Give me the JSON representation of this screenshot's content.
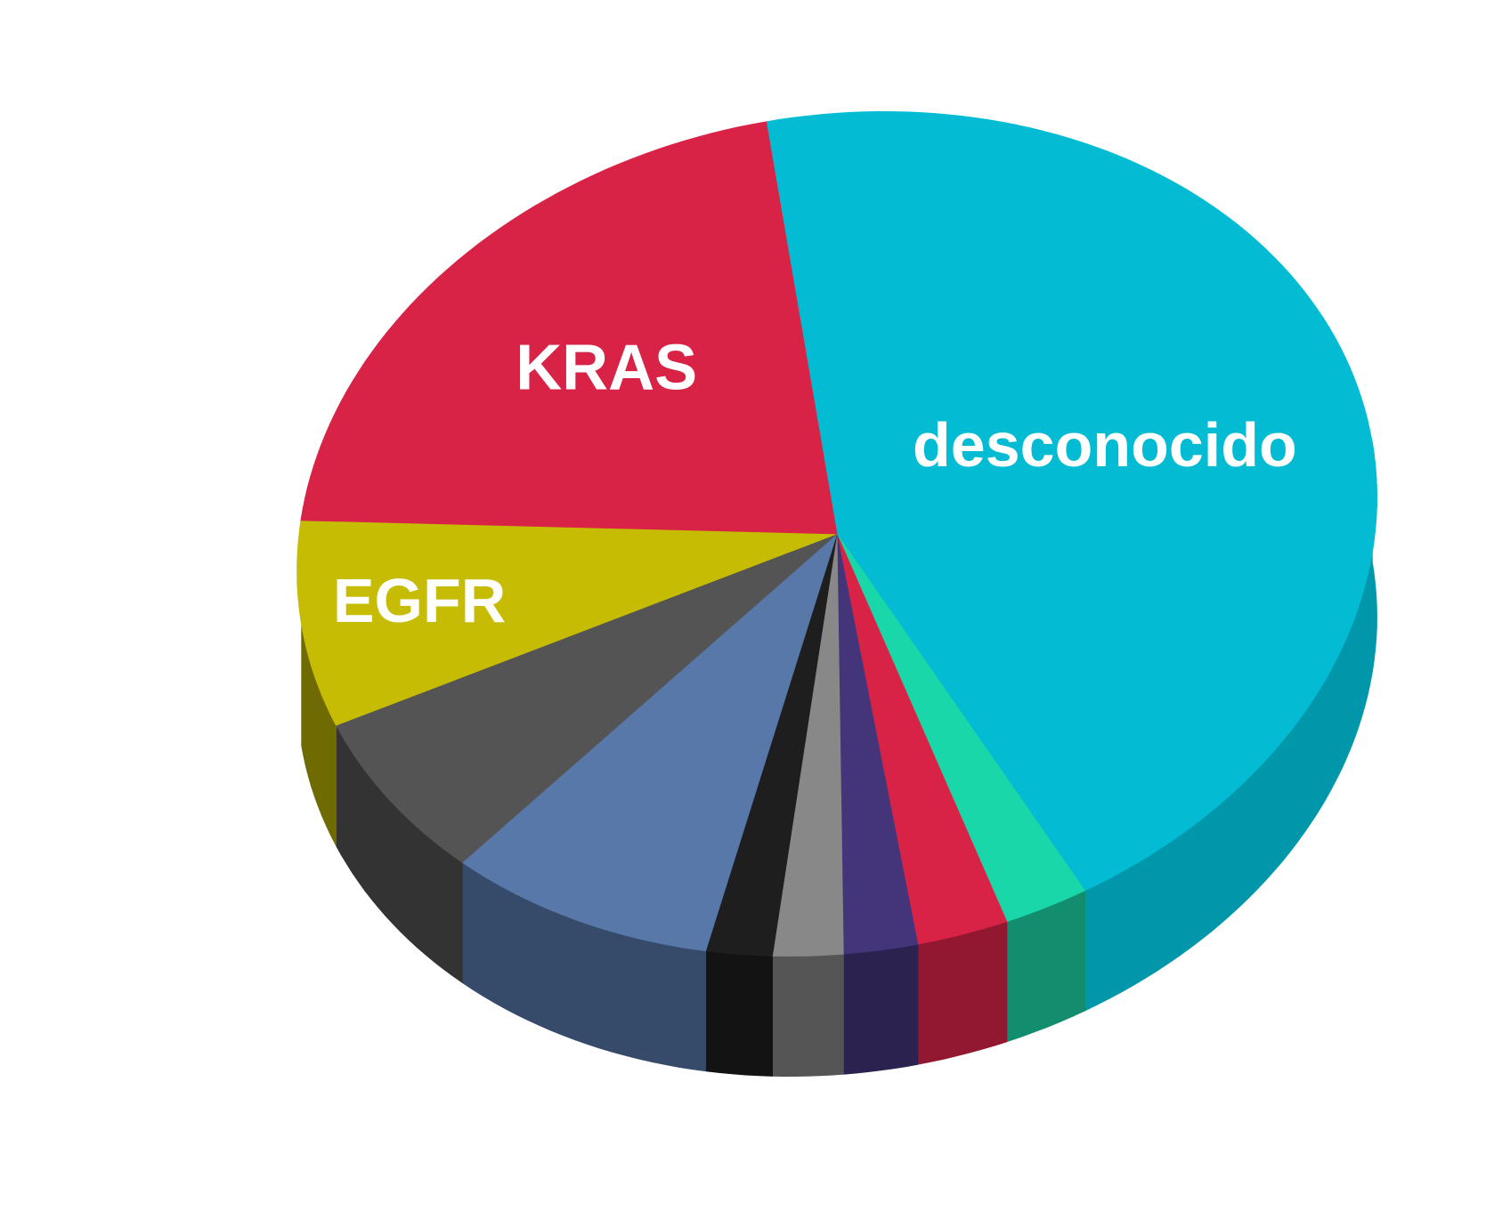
{
  "chart_data": {
    "type": "pie",
    "title": "",
    "style": "3d",
    "slices": [
      {
        "label": "desconocido",
        "value": 44.5,
        "color": "#03BCD3",
        "side_color": "#0097AB",
        "show_label": true
      },
      {
        "label": "",
        "value": 2.5,
        "color": "#19D7A8",
        "side_color": "#128E6E",
        "show_label": false
      },
      {
        "label": "",
        "value": 2.7,
        "color": "#D82246",
        "side_color": "#921730",
        "show_label": false
      },
      {
        "label": "",
        "value": 2.2,
        "color": "#44357A",
        "side_color": "#2B2250",
        "show_label": false
      },
      {
        "label": "",
        "value": 2.1,
        "color": "#888888",
        "side_color": "#555555",
        "show_label": false
      },
      {
        "label": "",
        "value": 2.0,
        "color": "#1E1E1E",
        "side_color": "#131313",
        "show_label": false
      },
      {
        "label": "",
        "value": 8.3,
        "color": "#5878AA",
        "side_color": "#364B6A",
        "show_label": false
      },
      {
        "label": "",
        "value": 6.7,
        "color": "#545454",
        "side_color": "#333333",
        "show_label": false
      },
      {
        "label": "EGFR",
        "value": 8.0,
        "color": "#C6BC04",
        "side_color": "#6F6A02",
        "show_label": true
      },
      {
        "label": "KRAS",
        "value": 21.0,
        "color": "#D82246",
        "side_color": "#921730",
        "show_label": true
      }
    ]
  }
}
